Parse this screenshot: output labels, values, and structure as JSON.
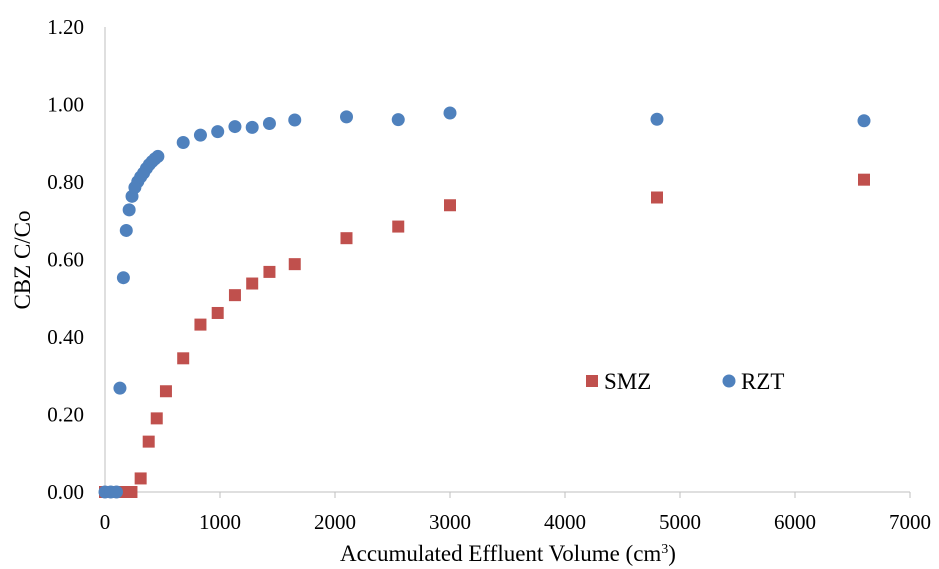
{
  "chart_data": {
    "type": "scatter",
    "title": "",
    "xlabel_prefix": "Accumulated Effluent Volume (cm",
    "xlabel_sup": "3",
    "xlabel_suffix": ")",
    "ylabel": "CBZ C/Co",
    "xlim": [
      0,
      7000
    ],
    "ylim": [
      0,
      1.2
    ],
    "x_ticks": [
      0,
      1000,
      2000,
      3000,
      4000,
      5000,
      6000,
      7000
    ],
    "x_tick_labels": [
      "0",
      "1000",
      "2000",
      "3000",
      "4000",
      "5000",
      "6000",
      "7000"
    ],
    "y_ticks": [
      0,
      0.2,
      0.4,
      0.6,
      0.8,
      1.0,
      1.2
    ],
    "y_tick_labels": [
      "0.00",
      "0.20",
      "0.40",
      "0.60",
      "0.80",
      "1.00",
      "1.20"
    ],
    "grid": false,
    "legend_position": "center-right",
    "series": [
      {
        "name": "SMZ",
        "marker": "square",
        "color": "#c0504d",
        "points": [
          [
            0,
            0.0
          ],
          [
            50,
            0.0
          ],
          [
            100,
            0.0
          ],
          [
            150,
            0.0
          ],
          [
            200,
            0.0
          ],
          [
            230,
            0.0
          ],
          [
            310,
            0.035
          ],
          [
            380,
            0.13
          ],
          [
            450,
            0.19
          ],
          [
            530,
            0.26
          ],
          [
            680,
            0.345
          ],
          [
            830,
            0.432
          ],
          [
            980,
            0.462
          ],
          [
            1130,
            0.508
          ],
          [
            1280,
            0.538
          ],
          [
            1430,
            0.568
          ],
          [
            1650,
            0.588
          ],
          [
            2100,
            0.655
          ],
          [
            2550,
            0.685
          ],
          [
            3000,
            0.74
          ],
          [
            4800,
            0.76
          ],
          [
            6600,
            0.806
          ]
        ]
      },
      {
        "name": "RZT",
        "marker": "circle",
        "color": "#4f81bd",
        "points": [
          [
            0,
            0.0
          ],
          [
            50,
            0.0
          ],
          [
            100,
            0.0
          ],
          [
            130,
            0.268
          ],
          [
            160,
            0.553
          ],
          [
            185,
            0.675
          ],
          [
            210,
            0.728
          ],
          [
            235,
            0.763
          ],
          [
            260,
            0.786
          ],
          [
            285,
            0.801
          ],
          [
            310,
            0.813
          ],
          [
            335,
            0.823
          ],
          [
            360,
            0.835
          ],
          [
            385,
            0.845
          ],
          [
            410,
            0.853
          ],
          [
            435,
            0.86
          ],
          [
            460,
            0.866
          ],
          [
            680,
            0.902
          ],
          [
            830,
            0.921
          ],
          [
            980,
            0.93
          ],
          [
            1130,
            0.943
          ],
          [
            1280,
            0.941
          ],
          [
            1430,
            0.951
          ],
          [
            1650,
            0.96
          ],
          [
            2100,
            0.968
          ],
          [
            2550,
            0.961
          ],
          [
            3000,
            0.978
          ],
          [
            4800,
            0.962
          ],
          [
            6600,
            0.958
          ]
        ]
      }
    ]
  }
}
